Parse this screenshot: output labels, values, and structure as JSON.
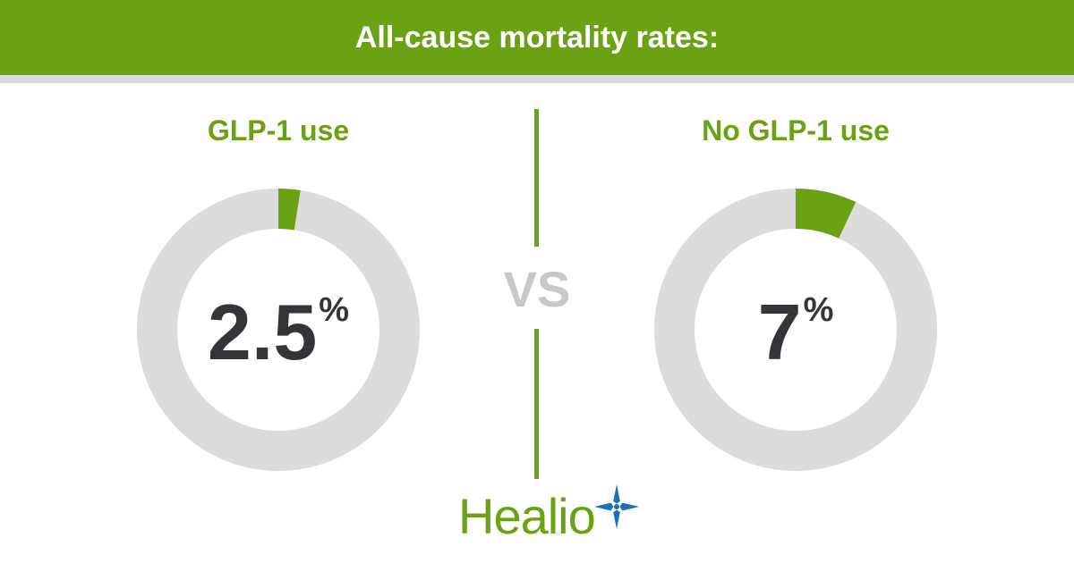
{
  "header": {
    "title": "All-cause mortality rates:"
  },
  "vs_label": "VS",
  "brand": {
    "name": "Healio",
    "logo_icon": "star-icon"
  },
  "colors": {
    "accent": "#6aa214",
    "track": "#dcdcdc",
    "value_text": "#333638",
    "vs_text": "#c8c8c8",
    "star_blue": "#1f6fb5"
  },
  "chart_data": [
    {
      "type": "pie",
      "label": "GLP-1 use",
      "value": 2.5,
      "display_value": "2.5",
      "unit": "%",
      "max": 100
    },
    {
      "type": "pie",
      "label": "No GLP-1 use",
      "value": 7,
      "display_value": "7",
      "unit": "%",
      "max": 100
    }
  ]
}
